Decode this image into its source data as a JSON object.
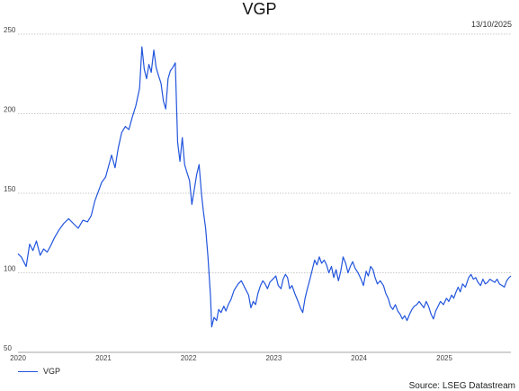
{
  "chart_data": {
    "type": "line",
    "title": "VGP",
    "date": "13/10/2025",
    "source": "Source: LSEG Datastream",
    "xlabel": "",
    "ylabel": "",
    "x_ticks": [
      "2020",
      "2021",
      "2022",
      "2023",
      "2024",
      "2025"
    ],
    "y_ticks": [
      50,
      100,
      150,
      200,
      250
    ],
    "xlim": [
      "2020-01-01",
      "2025-10-13"
    ],
    "ylim": [
      50,
      250
    ],
    "grid": "horizontal, dotted",
    "legend_position": "bottom-left",
    "series": [
      {
        "name": "VGP",
        "color": "#2255dd",
        "points": [
          [
            "2020-01-01",
            112
          ],
          [
            "2020-01-15",
            110
          ],
          [
            "2020-02-05",
            104
          ],
          [
            "2020-02-20",
            118
          ],
          [
            "2020-03-05",
            114
          ],
          [
            "2020-03-20",
            120
          ],
          [
            "2020-04-05",
            111
          ],
          [
            "2020-04-20",
            115
          ],
          [
            "2020-05-05",
            113
          ],
          [
            "2020-05-20",
            117
          ],
          [
            "2020-06-05",
            122
          ],
          [
            "2020-06-25",
            127
          ],
          [
            "2020-07-15",
            131
          ],
          [
            "2020-08-05",
            134
          ],
          [
            "2020-08-25",
            131
          ],
          [
            "2020-09-15",
            128
          ],
          [
            "2020-10-05",
            133
          ],
          [
            "2020-10-25",
            132
          ],
          [
            "2020-11-10",
            136
          ],
          [
            "2020-11-25",
            145
          ],
          [
            "2020-12-10",
            151
          ],
          [
            "2020-12-25",
            157
          ],
          [
            "2021-01-10",
            160
          ],
          [
            "2021-01-25",
            168
          ],
          [
            "2021-02-05",
            174
          ],
          [
            "2021-02-20",
            166
          ],
          [
            "2021-03-05",
            178
          ],
          [
            "2021-03-20",
            188
          ],
          [
            "2021-04-05",
            192
          ],
          [
            "2021-04-20",
            190
          ],
          [
            "2021-05-05",
            198
          ],
          [
            "2021-05-20",
            205
          ],
          [
            "2021-06-05",
            216
          ],
          [
            "2021-06-15",
            242
          ],
          [
            "2021-06-25",
            228
          ],
          [
            "2021-07-05",
            222
          ],
          [
            "2021-07-15",
            231
          ],
          [
            "2021-07-25",
            226
          ],
          [
            "2021-08-05",
            240
          ],
          [
            "2021-08-15",
            229
          ],
          [
            "2021-08-25",
            224
          ],
          [
            "2021-09-05",
            219
          ],
          [
            "2021-09-15",
            208
          ],
          [
            "2021-09-25",
            203
          ],
          [
            "2021-10-05",
            222
          ],
          [
            "2021-10-15",
            227
          ],
          [
            "2021-10-25",
            229
          ],
          [
            "2021-11-05",
            232
          ],
          [
            "2021-11-15",
            182
          ],
          [
            "2021-11-25",
            170
          ],
          [
            "2021-12-05",
            185
          ],
          [
            "2021-12-15",
            168
          ],
          [
            "2021-12-25",
            163
          ],
          [
            "2022-01-05",
            158
          ],
          [
            "2022-01-15",
            143
          ],
          [
            "2022-01-25",
            152
          ],
          [
            "2022-02-05",
            162
          ],
          [
            "2022-02-15",
            168
          ],
          [
            "2022-02-25",
            150
          ],
          [
            "2022-03-05",
            139
          ],
          [
            "2022-03-15",
            128
          ],
          [
            "2022-03-25",
            110
          ],
          [
            "2022-04-05",
            85
          ],
          [
            "2022-04-10",
            66
          ],
          [
            "2022-04-20",
            72
          ],
          [
            "2022-05-01",
            70
          ],
          [
            "2022-05-10",
            77
          ],
          [
            "2022-05-20",
            75
          ],
          [
            "2022-06-01",
            79
          ],
          [
            "2022-06-10",
            76
          ],
          [
            "2022-06-20",
            80
          ],
          [
            "2022-07-01",
            83
          ],
          [
            "2022-07-15",
            89
          ],
          [
            "2022-08-01",
            93
          ],
          [
            "2022-08-15",
            95
          ],
          [
            "2022-09-01",
            90
          ],
          [
            "2022-09-15",
            86
          ],
          [
            "2022-09-25",
            78
          ],
          [
            "2022-10-05",
            82
          ],
          [
            "2022-10-15",
            80
          ],
          [
            "2022-10-25",
            87
          ],
          [
            "2022-11-05",
            92
          ],
          [
            "2022-11-15",
            95
          ],
          [
            "2022-11-25",
            93
          ],
          [
            "2022-12-05",
            90
          ],
          [
            "2022-12-15",
            94
          ],
          [
            "2022-12-28",
            96
          ],
          [
            "2023-01-10",
            98
          ],
          [
            "2023-01-20",
            92
          ],
          [
            "2023-02-01",
            90
          ],
          [
            "2023-02-10",
            96
          ],
          [
            "2023-02-20",
            99
          ],
          [
            "2023-03-01",
            97
          ],
          [
            "2023-03-10",
            90
          ],
          [
            "2023-03-20",
            92
          ],
          [
            "2023-04-01",
            87
          ],
          [
            "2023-04-15",
            82
          ],
          [
            "2023-04-25",
            78
          ],
          [
            "2023-05-05",
            75
          ],
          [
            "2023-05-15",
            84
          ],
          [
            "2023-05-25",
            90
          ],
          [
            "2023-06-05",
            96
          ],
          [
            "2023-06-15",
            102
          ],
          [
            "2023-06-25",
            108
          ],
          [
            "2023-07-05",
            105
          ],
          [
            "2023-07-15",
            110
          ],
          [
            "2023-07-25",
            106
          ],
          [
            "2023-08-05",
            108
          ],
          [
            "2023-08-15",
            105
          ],
          [
            "2023-08-25",
            100
          ],
          [
            "2023-09-05",
            104
          ],
          [
            "2023-09-15",
            97
          ],
          [
            "2023-09-25",
            102
          ],
          [
            "2023-10-05",
            95
          ],
          [
            "2023-10-15",
            101
          ],
          [
            "2023-10-25",
            110
          ],
          [
            "2023-11-05",
            106
          ],
          [
            "2023-11-15",
            100
          ],
          [
            "2023-11-25",
            104
          ],
          [
            "2023-12-05",
            107
          ],
          [
            "2023-12-15",
            103
          ],
          [
            "2023-12-28",
            100
          ],
          [
            "2024-01-10",
            96
          ],
          [
            "2024-01-20",
            92
          ],
          [
            "2024-02-01",
            101
          ],
          [
            "2024-02-10",
            98
          ],
          [
            "2024-02-20",
            104
          ],
          [
            "2024-03-01",
            102
          ],
          [
            "2024-03-10",
            97
          ],
          [
            "2024-03-20",
            93
          ],
          [
            "2024-04-01",
            95
          ],
          [
            "2024-04-15",
            92
          ],
          [
            "2024-04-25",
            87
          ],
          [
            "2024-05-05",
            84
          ],
          [
            "2024-05-15",
            79
          ],
          [
            "2024-05-25",
            77
          ],
          [
            "2024-06-05",
            80
          ],
          [
            "2024-06-15",
            76
          ],
          [
            "2024-06-25",
            74
          ],
          [
            "2024-07-05",
            71
          ],
          [
            "2024-07-15",
            73
          ],
          [
            "2024-07-25",
            70
          ],
          [
            "2024-08-05",
            74
          ],
          [
            "2024-08-15",
            77
          ],
          [
            "2024-08-25",
            79
          ],
          [
            "2024-09-05",
            80
          ],
          [
            "2024-09-15",
            82
          ],
          [
            "2024-09-25",
            80
          ],
          [
            "2024-10-05",
            78
          ],
          [
            "2024-10-15",
            82
          ],
          [
            "2024-10-25",
            79
          ],
          [
            "2024-11-05",
            74
          ],
          [
            "2024-11-15",
            71
          ],
          [
            "2024-11-25",
            76
          ],
          [
            "2024-12-05",
            79
          ],
          [
            "2024-12-15",
            82
          ],
          [
            "2024-12-28",
            80
          ],
          [
            "2025-01-10",
            84
          ],
          [
            "2025-01-20",
            82
          ],
          [
            "2025-02-01",
            86
          ],
          [
            "2025-02-10",
            84
          ],
          [
            "2025-02-20",
            88
          ],
          [
            "2025-03-01",
            91
          ],
          [
            "2025-03-10",
            88
          ],
          [
            "2025-03-20",
            93
          ],
          [
            "2025-04-01",
            91
          ],
          [
            "2025-04-15",
            97
          ],
          [
            "2025-04-25",
            99
          ],
          [
            "2025-05-05",
            96
          ],
          [
            "2025-05-15",
            97
          ],
          [
            "2025-05-25",
            94
          ],
          [
            "2025-06-05",
            92
          ],
          [
            "2025-06-15",
            96
          ],
          [
            "2025-06-25",
            93
          ],
          [
            "2025-07-05",
            94
          ],
          [
            "2025-07-15",
            96
          ],
          [
            "2025-07-25",
            95
          ],
          [
            "2025-08-05",
            94
          ],
          [
            "2025-08-15",
            96
          ],
          [
            "2025-08-25",
            93
          ],
          [
            "2025-09-05",
            92
          ],
          [
            "2025-09-15",
            91
          ],
          [
            "2025-09-25",
            95
          ],
          [
            "2025-10-05",
            97
          ],
          [
            "2025-10-13",
            98
          ]
        ]
      }
    ]
  }
}
